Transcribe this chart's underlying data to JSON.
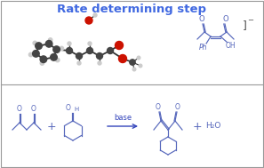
{
  "title": "Rate determining step",
  "title_color": "#4169e1",
  "title_fontsize": 9.5,
  "background_color": "#ffffff",
  "border_color": "#999999",
  "divider_color": "#999999",
  "mol_color": "#444444",
  "mol_h_color": "#cccccc",
  "mol_o_color": "#cc1100",
  "reaction_color": "#5566bb",
  "arrow_color": "#3344bb",
  "base_text": "base",
  "h2o_text": "H₂O",
  "bracket_color": "#444444",
  "neg_color": "#444444"
}
